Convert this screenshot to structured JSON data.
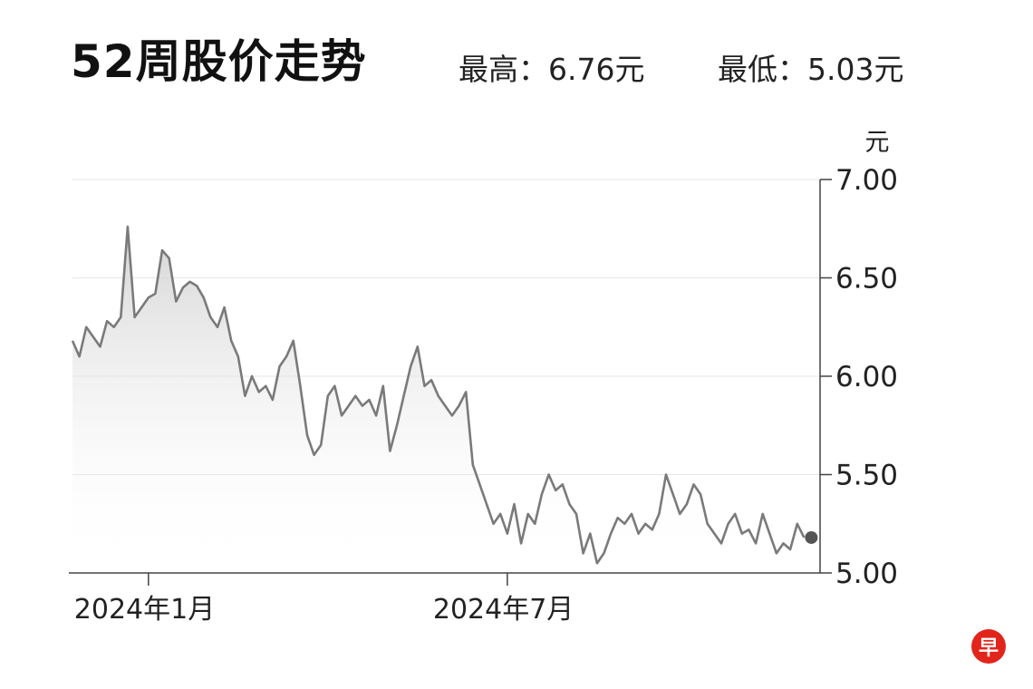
{
  "header": {
    "title": "52周股价走势",
    "high_text": "最高：6.76元",
    "low_text": "最低：5.03元"
  },
  "logo": {
    "text": "早",
    "color": "#e1251b"
  },
  "chart_data": {
    "type": "area",
    "title": "52周股价走势",
    "ylabel": "元",
    "xlabel": "",
    "ylim": [
      5.0,
      7.0
    ],
    "yticks": [
      5.0,
      5.5,
      6.0,
      6.5,
      7.0
    ],
    "ytick_labels": [
      "5.00",
      "5.50",
      "6.00",
      "6.50",
      "7.00"
    ],
    "y_axis_position": "right",
    "grid": true,
    "xtick_labels": [
      "2024年1月",
      "2024年7月"
    ],
    "xticks": [
      11,
      63
    ],
    "x_range": [
      0,
      107
    ],
    "series": [
      {
        "values": [
          6.18,
          6.1,
          6.25,
          6.2,
          6.15,
          6.28,
          6.25,
          6.3,
          6.76,
          6.3,
          6.35,
          6.4,
          6.42,
          6.64,
          6.6,
          6.38,
          6.45,
          6.48,
          6.46,
          6.4,
          6.3,
          6.25,
          6.35,
          6.18,
          6.1,
          5.9,
          6.0,
          5.92,
          5.95,
          5.88,
          6.05,
          6.1,
          6.18,
          5.95,
          5.7,
          5.6,
          5.65,
          5.9,
          5.95,
          5.8,
          5.85,
          5.9,
          5.85,
          5.88,
          5.8,
          5.95,
          5.62,
          5.75,
          5.9,
          6.05,
          6.15,
          5.95,
          5.98,
          5.9,
          5.85,
          5.8,
          5.85,
          5.92,
          5.55,
          5.45,
          5.35,
          5.25,
          5.3,
          5.2,
          5.35,
          5.15,
          5.3,
          5.25,
          5.4,
          5.5,
          5.42,
          5.45,
          5.35,
          5.3,
          5.1,
          5.2,
          5.05,
          5.1,
          5.2,
          5.28,
          5.25,
          5.3,
          5.2,
          5.25,
          5.22,
          5.3,
          5.5,
          5.4,
          5.3,
          5.35,
          5.45,
          5.4,
          5.25,
          5.2,
          5.15,
          5.25,
          5.3,
          5.2,
          5.22,
          5.15,
          5.3,
          5.2,
          5.1,
          5.15,
          5.12,
          5.25,
          5.18
        ]
      }
    ],
    "last_value": 5.18,
    "line_color": "#7a7a7a",
    "fill_color_top": "#cfcfcf",
    "marker_color": "#555555"
  }
}
